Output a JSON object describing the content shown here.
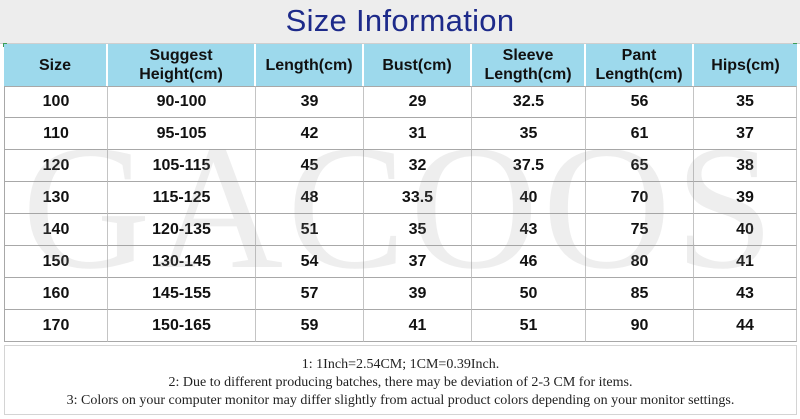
{
  "title": "Size Information",
  "watermark": "GACOOS",
  "table": {
    "headers": [
      [
        "Size"
      ],
      [
        "Suggest",
        "Height(cm)"
      ],
      [
        "Length(cm)"
      ],
      [
        "Bust(cm)"
      ],
      [
        "Sleeve",
        "Length(cm)"
      ],
      [
        "Pant",
        "Length(cm)"
      ],
      [
        "Hips(cm)"
      ]
    ],
    "rows": [
      [
        "100",
        "90-100",
        "39",
        "29",
        "32.5",
        "56",
        "35"
      ],
      [
        "110",
        "95-105",
        "42",
        "31",
        "35",
        "61",
        "37"
      ],
      [
        "120",
        "105-115",
        "45",
        "32",
        "37.5",
        "65",
        "38"
      ],
      [
        "130",
        "115-125",
        "48",
        "33.5",
        "40",
        "70",
        "39"
      ],
      [
        "140",
        "120-135",
        "51",
        "35",
        "43",
        "75",
        "40"
      ],
      [
        "150",
        "130-145",
        "54",
        "37",
        "46",
        "80",
        "41"
      ],
      [
        "160",
        "145-155",
        "57",
        "39",
        "50",
        "85",
        "43"
      ],
      [
        "170",
        "150-165",
        "59",
        "41",
        "51",
        "90",
        "44"
      ]
    ]
  },
  "notes": [
    "1: 1Inch=2.54CM; 1CM=0.39Inch.",
    "2: Due to different producing batches, there may be deviation of 2-3 CM for items.",
    "3: Colors on your computer monitor may differ slightly from actual product colors depending on your monitor settings."
  ],
  "colors": {
    "title_text": "#1d2a8a",
    "title_bg": "#ededed",
    "header_bg": "#9dd9ec"
  }
}
